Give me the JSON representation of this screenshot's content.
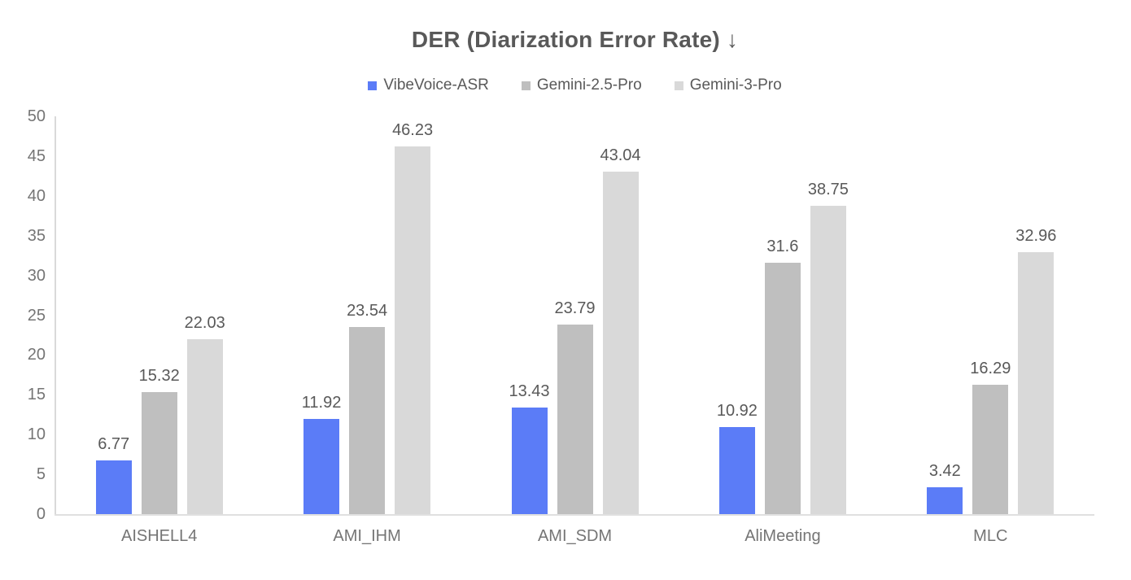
{
  "chart_data": {
    "type": "bar",
    "title": "DER (Diarization Error Rate) ↓",
    "categories": [
      "AISHELL4",
      "AMI_IHM",
      "AMI_SDM",
      "AliMeeting",
      "MLC"
    ],
    "series": [
      {
        "name": "VibeVoice-ASR",
        "color": "#5b7cf7",
        "values": [
          6.77,
          11.92,
          13.43,
          10.92,
          3.42
        ]
      },
      {
        "name": "Gemini-2.5-Pro",
        "color": "#bfbfbf",
        "values": [
          15.32,
          23.54,
          23.79,
          31.6,
          16.29
        ]
      },
      {
        "name": "Gemini-3-Pro",
        "color": "#d9d9d9",
        "values": [
          22.03,
          46.23,
          43.04,
          38.75,
          32.96
        ]
      }
    ],
    "ylim": [
      0,
      50
    ],
    "yticks": [
      0,
      5,
      10,
      15,
      20,
      25,
      30,
      35,
      40,
      45,
      50
    ],
    "grid": false,
    "legend_position": "top",
    "data_labels": true
  },
  "colors": {
    "title_text": "#595959",
    "legend_text": "#595959",
    "value_label_text": "#595959",
    "axis_tick_text": "#757575",
    "category_text": "#757575",
    "y_axis_line": "#d9d9d9",
    "x_axis_line": "#e0e0e0",
    "background": "#ffffff"
  }
}
